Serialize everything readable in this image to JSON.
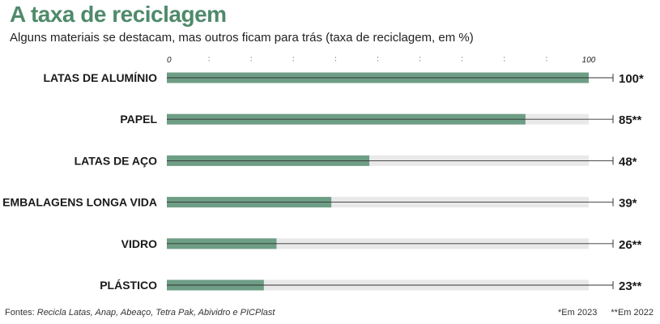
{
  "title": "A taxa de reciclagem",
  "subtitle": "Alguns materiais se destacam, mas outros ficam para trás (taxa de reciclagem, em %)",
  "footer": {
    "sources_label": "Fontes:",
    "sources": "Recicla Latas, Anap, Abeaço, Tetra Pak, Abividro e PICPlast",
    "note_single": "*Em 2023",
    "note_double": "**Em 2022"
  },
  "colors": {
    "bar": "#6e9e85",
    "track": "#e9e9e9",
    "title": "#4f8a6a"
  },
  "chart_data": {
    "type": "bar",
    "orientation": "horizontal",
    "categories": [
      "LATAS DE ALUMÍNIO",
      "PAPEL",
      "LATAS DE AÇO",
      "EMBALAGENS LONGA VIDA",
      "VIDRO",
      "PLÁSTICO"
    ],
    "values": [
      100,
      85,
      48,
      39,
      26,
      23
    ],
    "value_labels": [
      "100*",
      "85**",
      "48*",
      "39*",
      "26**",
      "23**"
    ],
    "xlim": [
      0,
      100
    ],
    "x_tick_labels": [
      "0",
      "100"
    ],
    "grid": "dotted vertical lines every 10"
  }
}
